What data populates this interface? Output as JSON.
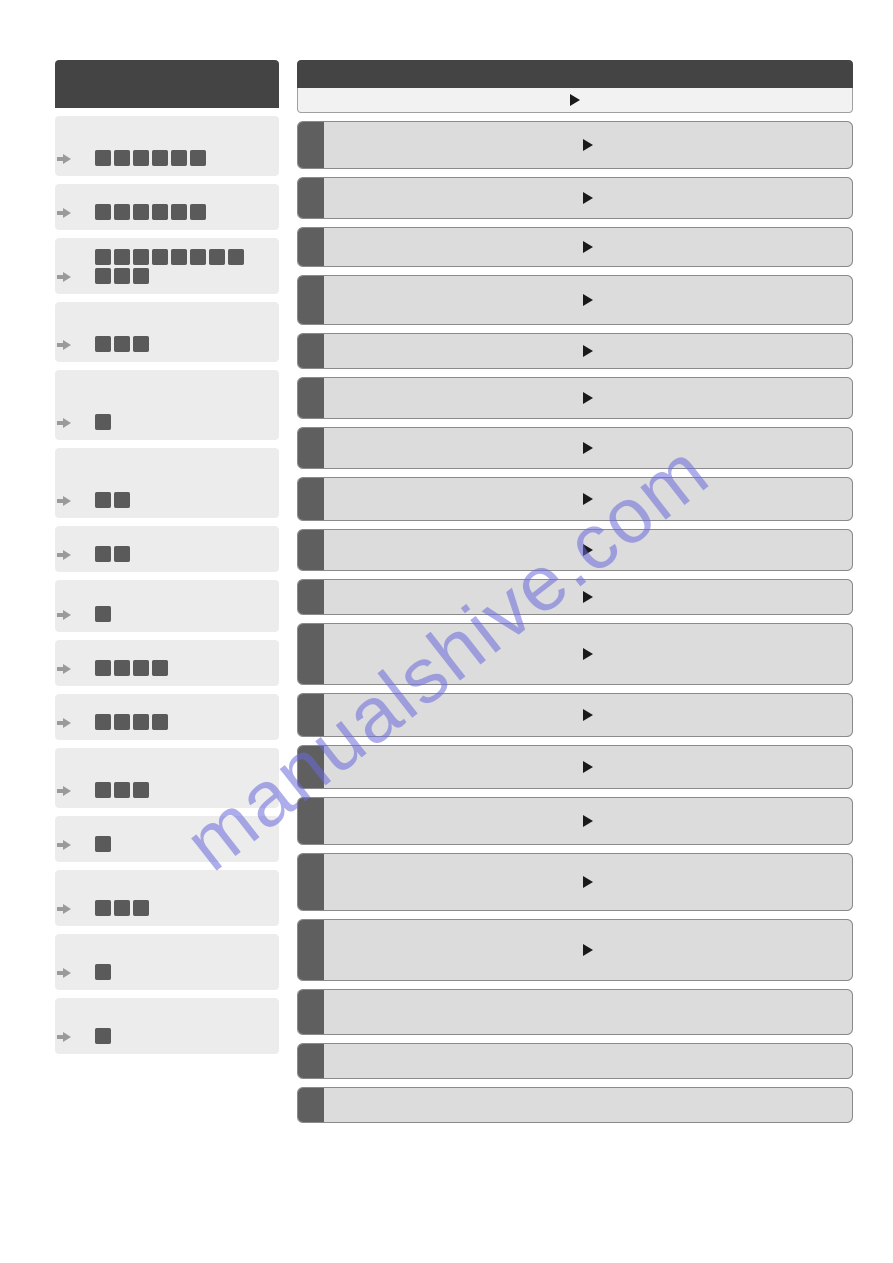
{
  "watermark": "manualshive.com",
  "theme": {
    "header_bg": "#444444",
    "subheader_bg": "#f2f2f2",
    "left_item_bg": "#ececec",
    "right_item_bg": "#dcdcdc",
    "right_tab_bg": "#5f5f5f",
    "block_bg": "#5a5a5a",
    "border": "#8a8a8a",
    "play_fill": "#1a1a1a",
    "arrow_fill": "#9a9a9a",
    "watermark_color": "rgba(106,106,220,0.55)"
  },
  "left": {
    "items": [
      {
        "height": 60,
        "blocks": 6,
        "padtop": 32
      },
      {
        "height": 46,
        "blocks": 6,
        "padtop": 18
      },
      {
        "height": 56,
        "blocks": 11,
        "padtop": 8,
        "wrap_after": 8
      },
      {
        "height": 60,
        "blocks": 3,
        "padtop": 32
      },
      {
        "height": 70,
        "blocks": 1,
        "padtop": 44
      },
      {
        "height": 70,
        "blocks": 2,
        "padtop": 44
      },
      {
        "height": 46,
        "blocks": 2,
        "padtop": 18
      },
      {
        "height": 52,
        "blocks": 1,
        "padtop": 26
      },
      {
        "height": 46,
        "blocks": 4,
        "padtop": 18
      },
      {
        "height": 46,
        "blocks": 4,
        "padtop": 18
      },
      {
        "height": 60,
        "blocks": 3,
        "padtop": 32
      },
      {
        "height": 46,
        "blocks": 1,
        "padtop": 18
      },
      {
        "height": 56,
        "blocks": 3,
        "padtop": 28
      },
      {
        "height": 56,
        "blocks": 1,
        "padtop": 28
      },
      {
        "height": 56,
        "blocks": 1,
        "padtop": 28
      }
    ]
  },
  "right": {
    "show_subheader_arrow": true,
    "items": [
      {
        "height": 48,
        "tab_height": 48,
        "arrow": true
      },
      {
        "height": 42,
        "tab_height": 42,
        "arrow": true
      },
      {
        "height": 40,
        "tab_height": 40,
        "arrow": true
      },
      {
        "height": 50,
        "tab_height": 50,
        "arrow": true
      },
      {
        "height": 36,
        "tab_height": 36,
        "arrow": true
      },
      {
        "height": 42,
        "tab_height": 42,
        "arrow": true
      },
      {
        "height": 42,
        "tab_height": 42,
        "arrow": true
      },
      {
        "height": 44,
        "tab_height": 44,
        "arrow": true
      },
      {
        "height": 42,
        "tab_height": 42,
        "arrow": true
      },
      {
        "height": 36,
        "tab_height": 36,
        "arrow": true
      },
      {
        "height": 62,
        "tab_height": 62,
        "arrow": true
      },
      {
        "height": 44,
        "tab_height": 44,
        "arrow": true
      },
      {
        "height": 44,
        "tab_height": 44,
        "arrow": true
      },
      {
        "height": 48,
        "tab_height": 48,
        "arrow": true
      },
      {
        "height": 58,
        "tab_height": 58,
        "arrow": true
      },
      {
        "height": 62,
        "tab_height": 62,
        "arrow": true
      },
      {
        "height": 46,
        "tab_height": 46,
        "arrow": false
      },
      {
        "height": 36,
        "tab_height": 36,
        "arrow": false
      },
      {
        "height": 36,
        "tab_height": 36,
        "arrow": false
      }
    ]
  }
}
